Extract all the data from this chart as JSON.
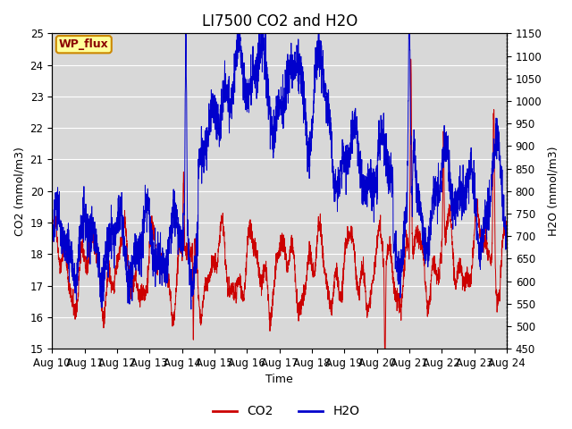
{
  "title": "LI7500 CO2 and H2O",
  "xlabel": "Time",
  "ylabel_left": "CO2 (mmol/m3)",
  "ylabel_right": "H2O (mmol/m3)",
  "co2_ylim": [
    15.0,
    25.0
  ],
  "h2o_ylim": [
    450,
    1150
  ],
  "x_tick_labels": [
    "Aug 10",
    "Aug 11",
    "Aug 12",
    "Aug 13",
    "Aug 14",
    "Aug 15",
    "Aug 16",
    "Aug 17",
    "Aug 18",
    "Aug 19",
    "Aug 20",
    "Aug 21",
    "Aug 22",
    "Aug 23",
    "Aug 24"
  ],
  "co2_yticks": [
    15.0,
    16.0,
    17.0,
    18.0,
    19.0,
    20.0,
    21.0,
    22.0,
    23.0,
    24.0,
    25.0
  ],
  "h2o_yticks": [
    450,
    500,
    550,
    600,
    650,
    700,
    750,
    800,
    850,
    900,
    950,
    1000,
    1050,
    1100,
    1150
  ],
  "co2_color": "#cc0000",
  "h2o_color": "#0000cc",
  "bg_color": "#d8d8d8",
  "annotation_text": "WP_flux",
  "annotation_bg": "#ffff99",
  "annotation_border": "#cc8800",
  "legend_co2": "CO2",
  "legend_h2o": "H2O",
  "title_fontsize": 12,
  "label_fontsize": 9,
  "tick_fontsize": 8.5
}
